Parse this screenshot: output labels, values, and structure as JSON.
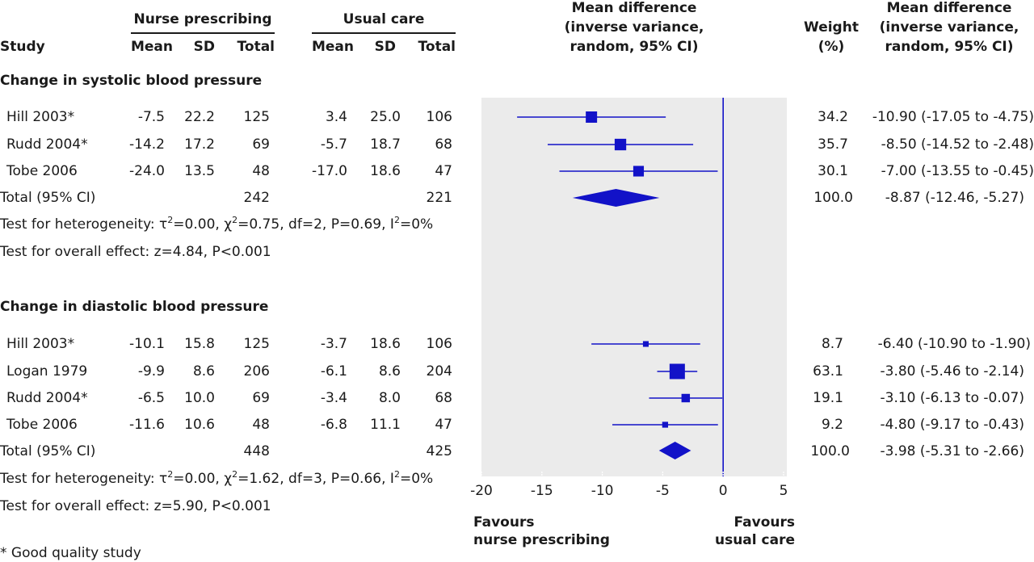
{
  "header": {
    "study": "Study",
    "group1": "Nurse prescribing",
    "group2": "Usual care",
    "mean": "Mean",
    "sd": "SD",
    "total": "Total",
    "plot_title_1": "Mean difference",
    "plot_title_2": "(inverse variance,",
    "plot_title_3": "random, 95% CI)",
    "weight_1": "Weight",
    "weight_2": "(%)",
    "md_1": "Mean difference",
    "md_2": "(inverse variance,",
    "md_3": "random, 95% CI)"
  },
  "sections": [
    {
      "title": "Change in systolic blood pressure",
      "studies": [
        {
          "name": "Hill 2003*",
          "m1": "-7.5",
          "sd1": "22.2",
          "n1": "125",
          "m2": "3.4",
          "sd2": "25.0",
          "n2": "106",
          "weight": "34.2",
          "md": "-10.90 (-17.05 to -4.75)"
        },
        {
          "name": "Rudd 2004*",
          "m1": "-14.2",
          "sd1": "17.2",
          "n1": "69",
          "m2": "-5.7",
          "sd2": "18.7",
          "n2": "68",
          "weight": "35.7",
          "md": "-8.50 (-14.52 to -2.48)"
        },
        {
          "name": "Tobe 2006",
          "m1": "-24.0",
          "sd1": "13.5",
          "n1": "48",
          "m2": "-17.0",
          "sd2": "18.6",
          "n2": "47",
          "weight": "30.1",
          "md": "-7.00 (-13.55 to -0.45)"
        }
      ],
      "total": {
        "label": "Total (95% CI)",
        "n1": "242",
        "n2": "221",
        "weight": "100.0",
        "md": "-8.87 (-12.46, -5.27)"
      },
      "heterogeneity": "Test for heterogeneity: τ²=0.00, χ²=0.75, df=2, P=0.69, I²=0%",
      "overall": "Test for overall effect: z=4.84, P<0.001"
    },
    {
      "title": "Change in diastolic blood pressure",
      "studies": [
        {
          "name": "Hill 2003*",
          "m1": "-10.1",
          "sd1": "15.8",
          "n1": "125",
          "m2": "-3.7",
          "sd2": "18.6",
          "n2": "106",
          "weight": "8.7",
          "md": "-6.40 (-10.90 to -1.90)"
        },
        {
          "name": "Logan 1979",
          "m1": "-9.9",
          "sd1": "8.6",
          "n1": "206",
          "m2": "-6.1",
          "sd2": "8.6",
          "n2": "204",
          "weight": "63.1",
          "md": "-3.80 (-5.46 to -2.14)"
        },
        {
          "name": "Rudd 2004*",
          "m1": "-6.5",
          "sd1": "10.0",
          "n1": "69",
          "m2": "-3.4",
          "sd2": "8.0",
          "n2": "68",
          "weight": "19.1",
          "md": "-3.10 (-6.13 to -0.07)"
        },
        {
          "name": "Tobe 2006",
          "m1": "-11.6",
          "sd1": "10.6",
          "n1": "48",
          "m2": "-6.8",
          "sd2": "11.1",
          "n2": "47",
          "weight": "9.2",
          "md": "-4.80 (-9.17 to -0.43)"
        }
      ],
      "total": {
        "label": "Total (95% CI)",
        "n1": "448",
        "n2": "425",
        "weight": "100.0",
        "md": "-3.98 (-5.31 to -2.66)"
      },
      "heterogeneity": "Test for heterogeneity: τ²=0.00, χ²=1.62, df=3, P=0.66, I²=0%",
      "overall": "Test for overall effect: z=5.90, P<0.001"
    }
  ],
  "footnote": "* Good quality study",
  "favours_left": [
    "Favours",
    "nurse prescribing"
  ],
  "favours_right": [
    "Favours",
    "usual care"
  ],
  "colors": {
    "marker": "#1212c8",
    "panel": "#ebebeb",
    "text": "#1a1a1a"
  },
  "chart_data": {
    "type": "forest",
    "x_axis": {
      "ticks": [
        "-20",
        "-15",
        "-10",
        "-5",
        "0",
        "5"
      ],
      "range": [
        -20,
        5
      ],
      "reference_line": 0
    },
    "series": [
      {
        "name": "Change in systolic blood pressure",
        "studies": [
          {
            "label": "Hill 2003*",
            "estimate": -10.9,
            "ci": [
              -17.05,
              -4.75
            ],
            "weight": 34.2
          },
          {
            "label": "Rudd 2004*",
            "estimate": -8.5,
            "ci": [
              -14.52,
              -2.48
            ],
            "weight": 35.7
          },
          {
            "label": "Tobe 2006",
            "estimate": -7.0,
            "ci": [
              -13.55,
              -0.45
            ],
            "weight": 30.1
          }
        ],
        "pooled": {
          "estimate": -8.87,
          "ci": [
            -12.46,
            -5.27
          ]
        }
      },
      {
        "name": "Change in diastolic blood pressure",
        "studies": [
          {
            "label": "Hill 2003*",
            "estimate": -6.4,
            "ci": [
              -10.9,
              -1.9
            ],
            "weight": 8.7
          },
          {
            "label": "Logan 1979",
            "estimate": -3.8,
            "ci": [
              -5.46,
              -2.14
            ],
            "weight": 63.1
          },
          {
            "label": "Rudd 2004*",
            "estimate": -3.1,
            "ci": [
              -6.13,
              -0.07
            ],
            "weight": 19.1
          },
          {
            "label": "Tobe 2006",
            "estimate": -4.8,
            "ci": [
              -9.17,
              -0.43
            ],
            "weight": 9.2
          }
        ],
        "pooled": {
          "estimate": -3.98,
          "ci": [
            -5.31,
            -2.66
          ]
        }
      }
    ]
  }
}
